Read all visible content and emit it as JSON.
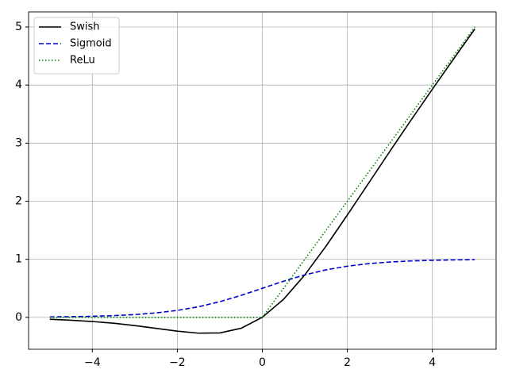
{
  "chart_data": {
    "type": "line",
    "x": [
      -5,
      -4.5,
      -4,
      -3.5,
      -3,
      -2.5,
      -2,
      -1.5,
      -1,
      -0.5,
      0,
      0.5,
      1,
      1.5,
      2,
      2.5,
      3,
      3.5,
      4,
      4.5,
      5
    ],
    "series": [
      {
        "name": "Swish",
        "color": "#000000",
        "linestyle": "solid",
        "values": [
          -0.033,
          -0.05,
          -0.072,
          -0.102,
          -0.142,
          -0.19,
          -0.238,
          -0.273,
          -0.269,
          -0.189,
          0,
          0.311,
          0.731,
          1.227,
          1.762,
          2.31,
          2.858,
          3.398,
          3.928,
          4.45,
          4.966
        ]
      },
      {
        "name": "Sigmoid",
        "color": "#0000cc",
        "linestyle": "dashed",
        "values": [
          0.007,
          0.011,
          0.018,
          0.029,
          0.047,
          0.076,
          0.119,
          0.182,
          0.269,
          0.378,
          0.5,
          0.622,
          0.731,
          0.818,
          0.881,
          0.924,
          0.953,
          0.971,
          0.982,
          0.989,
          0.993
        ]
      },
      {
        "name": "ReLu",
        "color": "#008000",
        "linestyle": "dotted",
        "values": [
          0,
          0,
          0,
          0,
          0,
          0,
          0,
          0,
          0,
          0,
          0,
          0.5,
          1,
          1.5,
          2,
          2.5,
          3,
          3.5,
          4,
          4.5,
          5
        ]
      }
    ],
    "xlim": [
      -5.5,
      5.5
    ],
    "ylim": [
      -0.55,
      5.26
    ],
    "xticks": [
      {
        "value": -4,
        "label": "−4"
      },
      {
        "value": -2,
        "label": "−2"
      },
      0,
      2,
      4
    ],
    "yticks": [
      0,
      1,
      2,
      3,
      4,
      5
    ],
    "grid": true,
    "legend": "upper-left"
  }
}
